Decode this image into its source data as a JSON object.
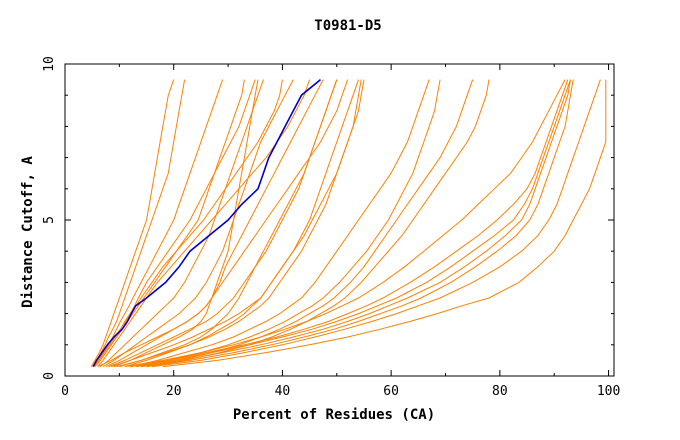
{
  "chart_data": {
    "type": "line",
    "title": "T0981-D5",
    "xlabel": "Percent of Residues (CA)",
    "ylabel": "Distance Cutoff, A",
    "xlim": [
      0,
      101
    ],
    "ylim": [
      0,
      10
    ],
    "x_ticks": [
      0,
      20,
      40,
      60,
      80,
      100
    ],
    "y_ticks": [
      0,
      5,
      10
    ],
    "grid": false,
    "legend": "none",
    "colors": {
      "background": "#ffffff",
      "others": "#ff8000",
      "highlight": "#0000cc",
      "axis": "#000000"
    },
    "y": [
      0.3,
      0.5,
      0.75,
      1.0,
      1.25,
      1.5,
      1.75,
      2.0,
      2.25,
      2.5,
      3.0,
      3.5,
      4.0,
      4.5,
      5.0,
      5.5,
      6.0,
      6.5,
      7.0,
      7.5,
      8.0,
      8.5,
      9.0,
      9.5
    ],
    "highlight_series": {
      "x": [
        5.2,
        5.8,
        6.8,
        7.8,
        9.0,
        10.5,
        11.5,
        12.2,
        13.0,
        15.0,
        18.5,
        21.0,
        23.0,
        26.5,
        30.0,
        32.5,
        35.5,
        36.5,
        37.5,
        39.0,
        40.5,
        42.0,
        43.5,
        47.0
      ]
    },
    "series": [
      {
        "x": [
          4.8,
          5.5,
          6.3,
          7.0,
          7.5,
          8.0,
          8.5,
          9.0,
          9.5,
          10.0,
          11.0,
          12.0,
          13.0,
          14.0,
          15.0,
          15.5,
          16.0,
          16.5,
          17.0,
          17.5,
          18.0,
          18.5,
          19.0,
          20.0
        ]
      },
      {
        "x": [
          5.0,
          5.8,
          6.6,
          7.4,
          8.0,
          8.8,
          9.5,
          10.0,
          10.5,
          11.0,
          12.0,
          13.0,
          14.0,
          15.0,
          16.0,
          17.0,
          18.0,
          19.0,
          19.5,
          20.0,
          20.5,
          21.0,
          21.5,
          22.0
        ]
      },
      {
        "x": [
          5.2,
          6.0,
          7.0,
          8.0,
          8.8,
          9.5,
          10.2,
          11.0,
          11.8,
          12.5,
          14.0,
          15.5,
          17.0,
          18.5,
          20.0,
          21.0,
          22.0,
          23.0,
          24.0,
          25.0,
          26.0,
          27.0,
          28.0,
          29.0
        ]
      },
      {
        "x": [
          5.5,
          6.5,
          7.5,
          8.5,
          9.5,
          10.5,
          11.2,
          12.0,
          12.8,
          13.5,
          15.0,
          17.0,
          19.0,
          21.0,
          23.0,
          24.5,
          26.0,
          27.5,
          29.0,
          30.5,
          32.0,
          33.0,
          34.0,
          35.0
        ]
      },
      {
        "x": [
          5.3,
          6.2,
          7.2,
          8.2,
          9.2,
          10.2,
          11.0,
          12.0,
          13.0,
          14.0,
          16.0,
          18.0,
          20.5,
          23.0,
          25.5,
          27.5,
          29.5,
          31.5,
          33.5,
          35.5,
          37.0,
          38.5,
          39.5,
          40.0
        ]
      },
      {
        "x": [
          6.0,
          7.0,
          8.0,
          9.0,
          10.0,
          11.0,
          12.0,
          13.0,
          14.0,
          15.0,
          17.0,
          19.5,
          22.0,
          24.5,
          27.0,
          29.5,
          32.0,
          34.5,
          37.0,
          39.0,
          41.0,
          42.5,
          44.0,
          45.0
        ]
      },
      {
        "x": [
          5.5,
          6.5,
          7.5,
          8.5,
          9.5,
          10.5,
          11.5,
          12.5,
          13.5,
          14.5,
          16.5,
          18.5,
          20.5,
          22.5,
          24.5,
          25.5,
          26.5,
          27.5,
          28.5,
          29.5,
          30.5,
          31.5,
          32.5,
          33.0
        ]
      },
      {
        "x": [
          6.5,
          8.0,
          9.5,
          11.0,
          12.5,
          14.0,
          15.5,
          17.0,
          18.5,
          20.0,
          22.0,
          23.5,
          25.0,
          26.5,
          27.5,
          28.5,
          29.5,
          30.5,
          31.5,
          32.5,
          33.5,
          34.5,
          35.5,
          36.5
        ]
      },
      {
        "x": [
          7.0,
          9.0,
          11.0,
          13.0,
          15.0,
          17.0,
          19.0,
          21.0,
          22.5,
          24.0,
          26.0,
          27.5,
          29.0,
          30.0,
          31.0,
          32.0,
          33.0,
          34.0,
          35.0,
          36.0,
          37.5,
          39.0,
          40.5,
          42.0
        ]
      },
      {
        "x": [
          8.0,
          11.0,
          14.0,
          17.0,
          20.0,
          23.0,
          26.0,
          28.0,
          29.5,
          31.0,
          33.0,
          35.0,
          37.0,
          38.5,
          40.0,
          41.5,
          43.0,
          44.0,
          45.0,
          46.0,
          47.0,
          48.0,
          49.0,
          50.0
        ]
      },
      {
        "x": [
          9.0,
          12.0,
          15.0,
          18.0,
          21.0,
          23.5,
          25.0,
          26.0,
          26.5,
          27.0,
          28.0,
          29.0,
          30.0,
          30.5,
          31.0,
          31.5,
          32.0,
          32.5,
          33.0,
          33.5,
          34.0,
          34.5,
          35.0,
          35.5
        ]
      },
      {
        "x": [
          7.5,
          10.0,
          12.5,
          15.0,
          17.5,
          20.0,
          22.5,
          24.5,
          26.0,
          27.0,
          28.5,
          29.5,
          31.0,
          32.5,
          34.0,
          35.5,
          37.0,
          38.5,
          40.0,
          41.5,
          43.0,
          44.5,
          46.0,
          47.5
        ]
      },
      {
        "x": [
          6.0,
          8.5,
          11.0,
          14.0,
          17.0,
          20.0,
          22.5,
          24.5,
          26.0,
          27.0,
          29.0,
          31.0,
          33.0,
          35.0,
          37.0,
          39.0,
          41.0,
          43.0,
          45.0,
          47.0,
          48.5,
          50.0,
          51.0,
          52.0
        ]
      },
      {
        "x": [
          10.0,
          14.0,
          18.0,
          22.0,
          25.0,
          27.0,
          28.5,
          30.0,
          31.0,
          32.0,
          33.5,
          35.0,
          36.5,
          38.0,
          39.5,
          41.0,
          42.5,
          44.0,
          45.0,
          46.0,
          47.0,
          48.0,
          49.0,
          50.0
        ]
      },
      {
        "x": [
          11.0,
          15.0,
          19.0,
          23.0,
          26.0,
          28.5,
          31.0,
          33.0,
          34.5,
          36.0,
          38.0,
          40.0,
          42.0,
          43.5,
          45.0,
          46.0,
          47.0,
          48.0,
          49.0,
          50.0,
          51.0,
          52.0,
          53.0,
          54.0
        ]
      },
      {
        "x": [
          9.5,
          14.0,
          18.5,
          23.0,
          26.5,
          29.5,
          32.0,
          34.0,
          36.0,
          37.5,
          39.5,
          41.5,
          43.5,
          45.0,
          46.5,
          48.0,
          49.0,
          50.0,
          51.0,
          52.0,
          53.0,
          53.5,
          54.0,
          54.5
        ]
      },
      {
        "x": [
          8.5,
          12.0,
          16.0,
          20.0,
          23.5,
          26.5,
          29.5,
          32.0,
          34.0,
          36.0,
          38.0,
          40.0,
          42.0,
          44.0,
          45.5,
          47.0,
          48.5,
          50.0,
          51.0,
          52.0,
          53.0,
          54.0,
          54.5,
          55.0
        ]
      },
      {
        "x": [
          12.0,
          17.0,
          22.0,
          27.0,
          31.0,
          34.0,
          37.0,
          39.5,
          41.5,
          43.5,
          46.0,
          48.0,
          50.0,
          52.0,
          54.0,
          56.0,
          58.0,
          60.0,
          61.5,
          63.0,
          64.0,
          65.0,
          66.0,
          67.0
        ]
      },
      {
        "x": [
          13.0,
          19.0,
          25.0,
          30.0,
          34.0,
          37.5,
          40.5,
          43.0,
          45.5,
          47.5,
          50.5,
          53.0,
          55.5,
          57.5,
          59.5,
          61.0,
          62.5,
          64.0,
          65.0,
          66.0,
          67.0,
          68.0,
          68.5,
          69.0
        ]
      },
      {
        "x": [
          14.0,
          21.0,
          27.0,
          32.0,
          36.0,
          39.5,
          42.5,
          45.0,
          47.5,
          49.5,
          52.5,
          55.0,
          57.0,
          59.0,
          61.0,
          63.0,
          65.0,
          67.0,
          69.0,
          70.5,
          72.0,
          73.0,
          74.0,
          75.0
        ]
      },
      {
        "x": [
          15.0,
          22.0,
          28.5,
          34.0,
          38.0,
          41.5,
          44.5,
          47.0,
          49.5,
          51.5,
          54.5,
          57.0,
          59.5,
          62.0,
          64.0,
          66.0,
          68.0,
          70.0,
          72.0,
          74.0,
          75.5,
          76.5,
          77.5,
          78.0
        ]
      },
      {
        "x": [
          11.0,
          18.0,
          25.0,
          31.0,
          36.0,
          40.5,
          44.5,
          48.0,
          51.0,
          54.0,
          58.5,
          62.5,
          66.0,
          69.5,
          73.0,
          76.0,
          79.0,
          82.0,
          84.0,
          86.0,
          87.5,
          89.0,
          90.5,
          92.0
        ]
      },
      {
        "x": [
          12.0,
          19.0,
          26.0,
          33.0,
          39.0,
          44.0,
          48.5,
          52.0,
          55.5,
          58.5,
          63.5,
          68.0,
          72.0,
          76.0,
          79.5,
          82.5,
          85.0,
          86.5,
          87.5,
          88.5,
          89.5,
          90.5,
          91.5,
          92.5
        ]
      },
      {
        "x": [
          13.0,
          20.0,
          27.0,
          34.0,
          40.0,
          45.5,
          50.0,
          54.0,
          57.5,
          61.0,
          66.5,
          71.0,
          75.0,
          79.0,
          82.5,
          84.5,
          86.0,
          87.0,
          88.0,
          89.0,
          90.0,
          91.0,
          92.0,
          93.0
        ]
      },
      {
        "x": [
          14.0,
          21.5,
          29.0,
          36.0,
          42.0,
          47.5,
          52.0,
          56.0,
          59.5,
          63.0,
          69.0,
          73.5,
          77.5,
          81.0,
          84.0,
          85.5,
          86.5,
          87.5,
          88.5,
          89.5,
          90.5,
          91.5,
          92.5,
          93.0
        ]
      },
      {
        "x": [
          15.0,
          23.0,
          31.0,
          38.0,
          44.0,
          49.5,
          54.0,
          58.0,
          62.0,
          65.5,
          71.0,
          75.5,
          79.5,
          83.0,
          85.5,
          87.0,
          88.0,
          89.0,
          90.0,
          91.0,
          92.0,
          92.5,
          93.0,
          93.5
        ]
      },
      {
        "x": [
          16.0,
          25.0,
          33.0,
          40.0,
          46.0,
          51.5,
          56.5,
          61.0,
          65.0,
          69.0,
          75.0,
          80.0,
          84.0,
          87.0,
          89.0,
          90.5,
          91.5,
          92.5,
          93.5,
          94.5,
          95.5,
          96.5,
          97.5,
          98.5
        ]
      },
      {
        "x": [
          18.0,
          28.0,
          37.0,
          45.0,
          52.0,
          58.0,
          63.5,
          68.5,
          73.0,
          78.0,
          83.5,
          87.0,
          90.0,
          92.0,
          93.5,
          95.0,
          96.5,
          97.5,
          98.5,
          99.5,
          99.5,
          99.5,
          99.5,
          99.5
        ]
      }
    ]
  }
}
